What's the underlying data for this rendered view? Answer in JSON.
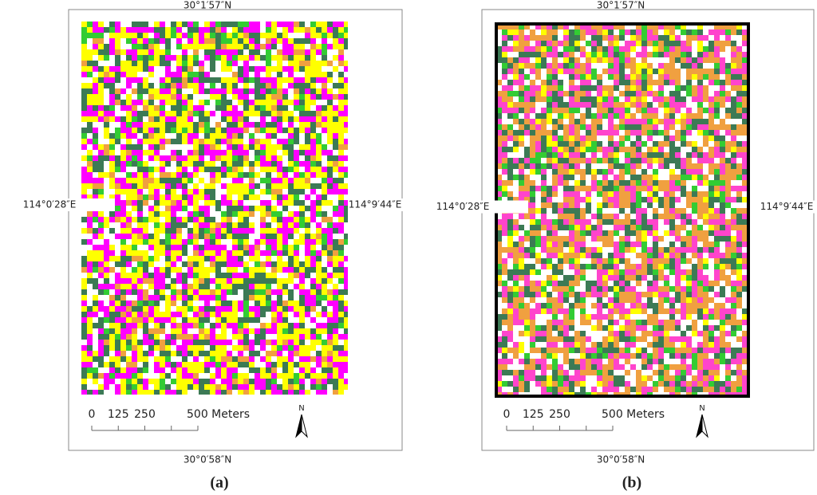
{
  "panels": [
    {
      "caption": "(a)",
      "labels": {
        "top": "30°1′57″N",
        "left": "114°0′28″E",
        "right": "114°9′44″E",
        "bottom": "30°0′58″N"
      },
      "scale": [
        "0",
        "125",
        "250",
        "500 Meters"
      ],
      "north": "N"
    },
    {
      "caption": "(b)",
      "labels": {
        "top": "30°1′57″N",
        "left": "114°0′28″E",
        "right": "114°9′44″E",
        "bottom": "30°0′58″N"
      },
      "scale": [
        "0",
        "125",
        "250",
        "500 Meters"
      ],
      "north": "N"
    }
  ]
}
